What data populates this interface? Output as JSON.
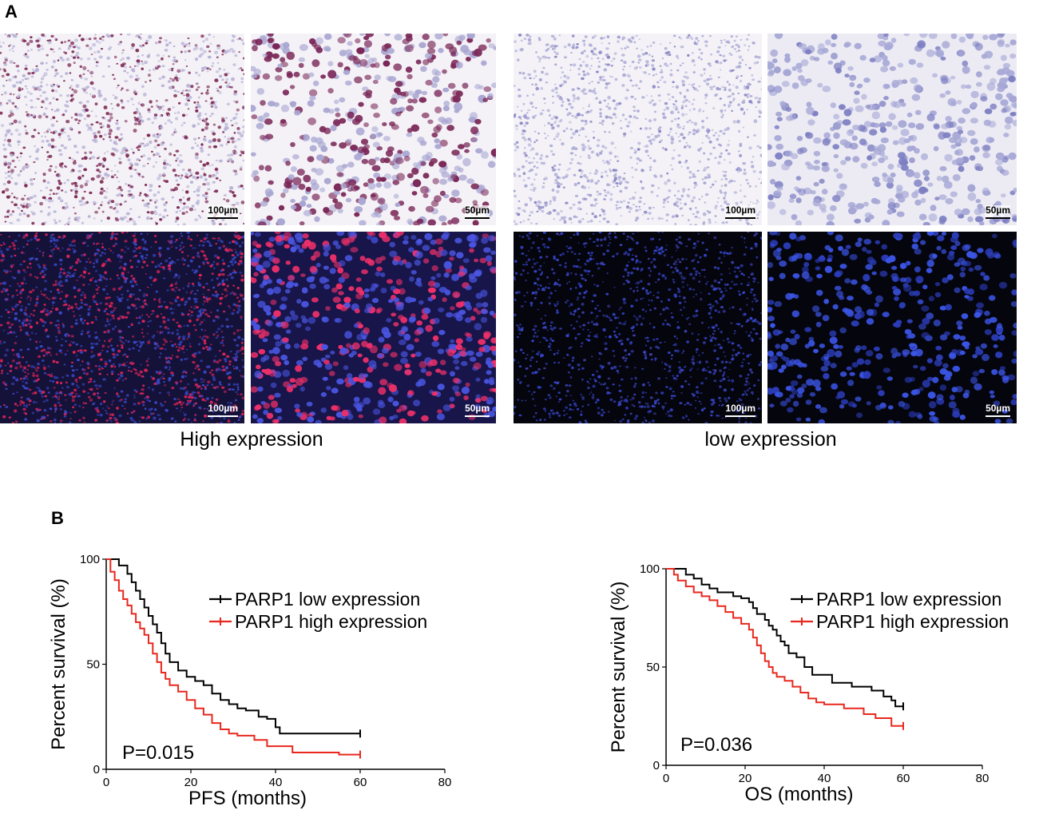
{
  "panel_a": {
    "letter": "A",
    "images": [
      {
        "scale": "100µm"
      },
      {
        "scale": "50µm"
      },
      {
        "scale": "100µm"
      },
      {
        "scale": "50µm"
      },
      {
        "scale": "100µm"
      },
      {
        "scale": "50µm"
      },
      {
        "scale": "100µm"
      },
      {
        "scale": "50µm"
      }
    ],
    "captions": {
      "high": "High expression",
      "low": "low expression"
    }
  },
  "panel_b": {
    "letter": "B"
  },
  "colors": {
    "low": "#000000",
    "high": "#e8281e",
    "ihc_bg": "#f4f2f7",
    "if_bg": "#05050e"
  },
  "chart_data": [
    {
      "type": "line",
      "title": "",
      "xlabel": "PFS (months)",
      "ylabel": "Percent survival (%)",
      "xlim": [
        0,
        80
      ],
      "ylim": [
        0,
        100
      ],
      "xticks": [
        0,
        20,
        40,
        60,
        80
      ],
      "yticks": [
        0,
        50,
        100
      ],
      "annotation": "P=0.015",
      "legend_position": "top-right",
      "series": [
        {
          "name": "PARP1 low expression",
          "color": "#000000",
          "x": [
            0,
            3,
            5,
            6,
            7,
            8,
            9,
            10,
            11,
            12,
            13,
            14,
            15,
            17,
            19,
            21,
            23,
            25,
            27,
            29,
            31,
            33,
            36,
            38,
            40,
            41,
            60
          ],
          "y": [
            100,
            97,
            93,
            89,
            85,
            81,
            77,
            73,
            69,
            65,
            60,
            55,
            51,
            47,
            44,
            42,
            40,
            36,
            33,
            31,
            29,
            28,
            25,
            24,
            20,
            17,
            17
          ]
        },
        {
          "name": "PARP1 high expression",
          "color": "#e8281e",
          "x": [
            0,
            1,
            2,
            3,
            4,
            5,
            6,
            7,
            8,
            9,
            10,
            11,
            12,
            13,
            14,
            15,
            17,
            19,
            21,
            23,
            25,
            27,
            29,
            31,
            35,
            38,
            44,
            55,
            60
          ],
          "y": [
            100,
            94,
            90,
            85,
            81,
            78,
            74,
            70,
            67,
            64,
            60,
            55,
            51,
            46,
            43,
            40,
            37,
            33,
            29,
            26,
            22,
            19,
            17,
            16,
            14,
            11,
            8,
            7,
            7
          ]
        }
      ]
    },
    {
      "type": "line",
      "title": "",
      "xlabel": "OS (months)",
      "ylabel": "Percent survival (%)",
      "xlim": [
        0,
        80
      ],
      "ylim": [
        0,
        100
      ],
      "xticks": [
        0,
        20,
        40,
        60,
        80
      ],
      "yticks": [
        0,
        50,
        100
      ],
      "annotation": "P=0.036",
      "legend_position": "top-right",
      "series": [
        {
          "name": "PARP1 low expression",
          "color": "#000000",
          "x": [
            0,
            5,
            7,
            9,
            11,
            13,
            17,
            19,
            21,
            22,
            23,
            25,
            26,
            27,
            28,
            29,
            30,
            31,
            33,
            35,
            37,
            42,
            47,
            52,
            55,
            57,
            58,
            60
          ],
          "y": [
            100,
            97,
            95,
            92,
            90,
            88,
            86,
            85,
            83,
            80,
            77,
            74,
            71,
            69,
            66,
            63,
            61,
            57,
            55,
            50,
            46,
            42,
            40,
            38,
            35,
            33,
            30,
            30
          ]
        },
        {
          "name": "PARP1 high expression",
          "color": "#e8281e",
          "x": [
            0,
            2,
            3,
            5,
            7,
            9,
            11,
            13,
            15,
            17,
            19,
            21,
            22,
            23,
            24,
            25,
            26,
            27,
            28,
            30,
            32,
            34,
            36,
            38,
            40,
            45,
            50,
            53,
            57,
            60
          ],
          "y": [
            100,
            97,
            94,
            91,
            88,
            86,
            84,
            81,
            78,
            75,
            72,
            69,
            65,
            61,
            57,
            53,
            50,
            47,
            45,
            43,
            40,
            37,
            34,
            32,
            31,
            29,
            26,
            24,
            20,
            20
          ]
        }
      ]
    }
  ]
}
